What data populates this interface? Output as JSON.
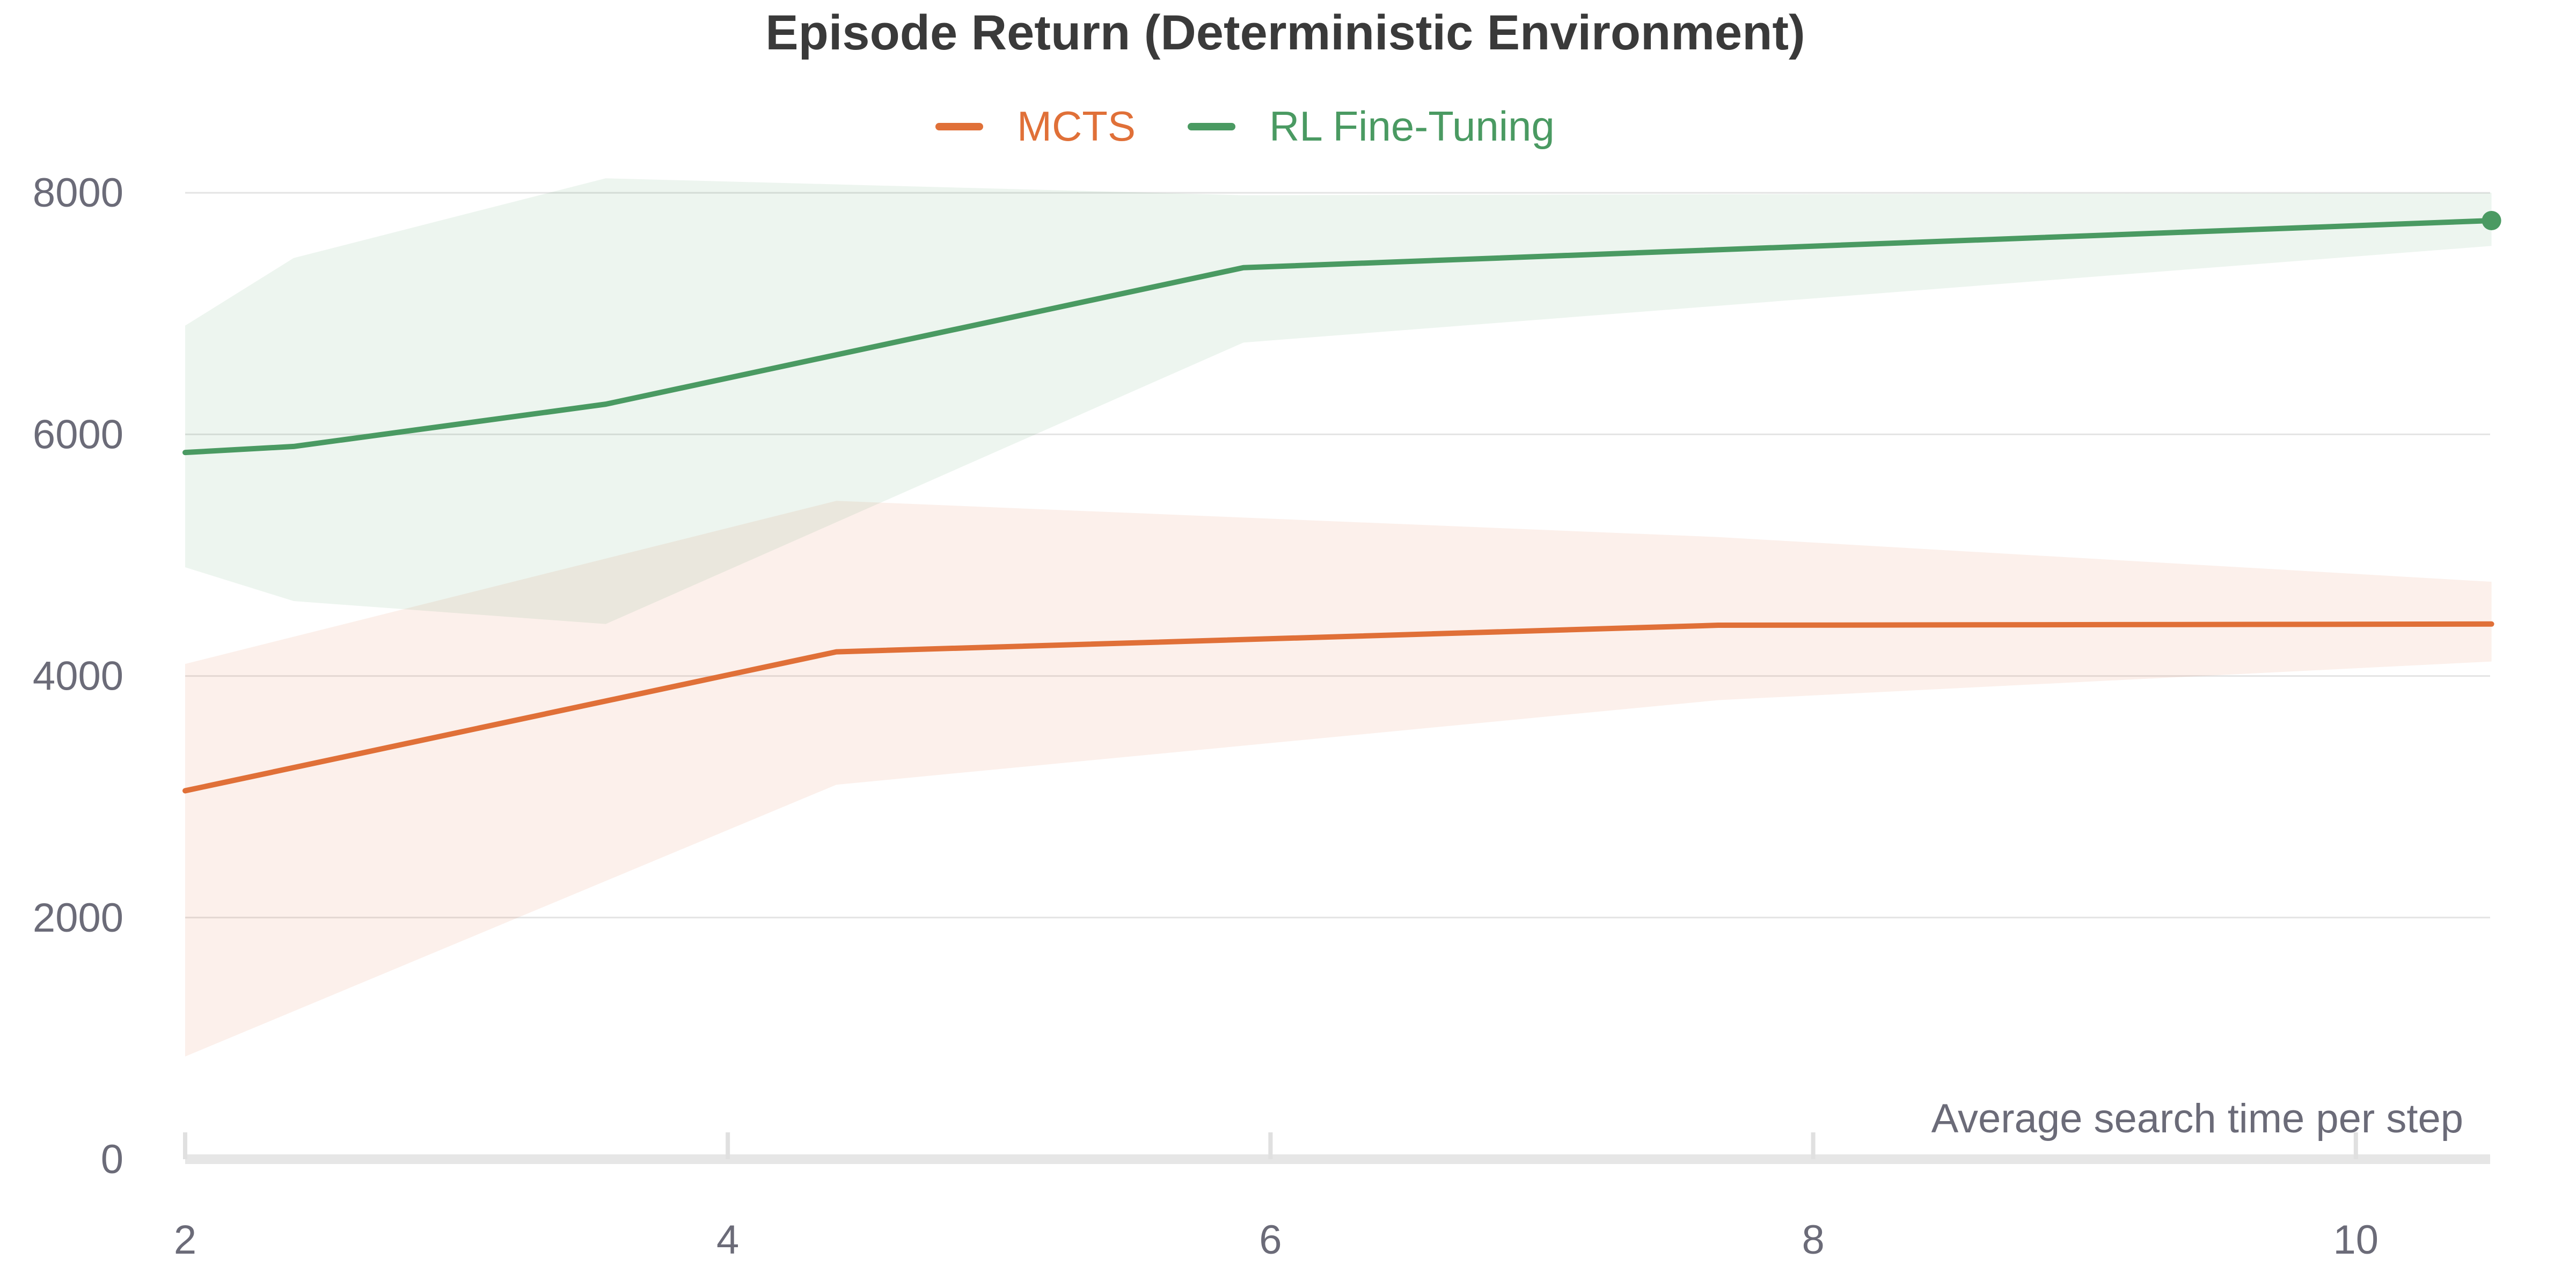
{
  "chart_data": {
    "type": "line",
    "title": "Episode Return (Deterministic Environment)",
    "xlabel": "Average search time per step",
    "ylabel": "",
    "xlim": [
      2,
      10.5
    ],
    "ylim": [
      0,
      8000
    ],
    "x_ticks": [
      "2",
      "4",
      "6",
      "8",
      "10"
    ],
    "y_ticks": [
      "0",
      "2000",
      "4000",
      "6000",
      "8000"
    ],
    "grid": true,
    "legend": "top-center",
    "series": [
      {
        "name": "MCTS",
        "color": "#e07038",
        "x": [
          2.0,
          4.4,
          7.65,
          10.5
        ],
        "y": [
          3050,
          4200,
          4420,
          4430
        ],
        "band_lower": [
          850,
          3100,
          3800,
          4120
        ],
        "band_upper": [
          4100,
          5450,
          5150,
          4780
        ]
      },
      {
        "name": "RL Fine-Tuning",
        "color": "#4a9a62",
        "x": [
          2.0,
          2.4,
          3.55,
          5.9,
          10.5
        ],
        "y": [
          5850,
          5900,
          6250,
          7380,
          7770
        ],
        "band_lower": [
          4900,
          4620,
          4430,
          6760,
          7560
        ],
        "band_upper": [
          6900,
          7460,
          8120,
          7980,
          8000
        ]
      }
    ]
  }
}
